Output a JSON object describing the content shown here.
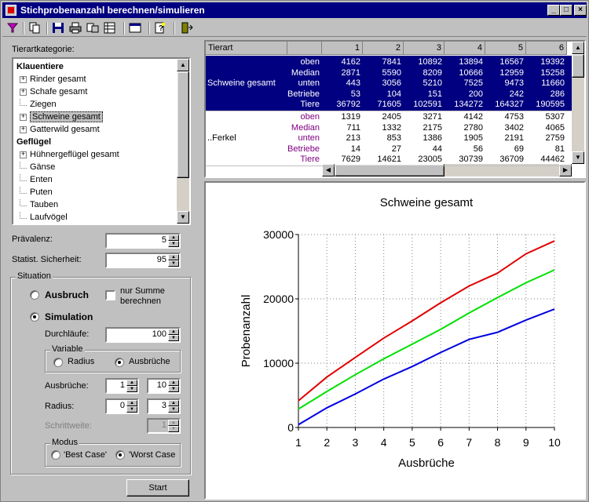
{
  "window": {
    "title": "Stichprobenanzahl berechnen/simulieren",
    "controls": [
      "_",
      "□",
      "×"
    ]
  },
  "toolbar": {
    "icons": [
      "filter-icon",
      "copy-icon",
      "save-icon",
      "print-icon",
      "export-icon",
      "table-icon",
      "window-icon",
      "help-icon",
      "exit-icon"
    ]
  },
  "left": {
    "tree_label": "Tierartkategorie:",
    "tree": [
      {
        "label": "Klauentiere",
        "bold": true,
        "indent": 0,
        "expander": "none"
      },
      {
        "label": "Rinder gesamt",
        "indent": 1,
        "expander": "+"
      },
      {
        "label": "Schafe gesamt",
        "indent": 1,
        "expander": "+"
      },
      {
        "label": "Ziegen",
        "indent": 1,
        "expander": "line"
      },
      {
        "label": "Schweine gesamt",
        "indent": 1,
        "expander": "+",
        "selected": true
      },
      {
        "label": "Gatterwild gesamt",
        "indent": 1,
        "expander": "+"
      },
      {
        "label": "Geflügel",
        "bold": true,
        "indent": 0,
        "expander": "none"
      },
      {
        "label": "Hühnergeflügel gesamt",
        "indent": 1,
        "expander": "+"
      },
      {
        "label": "Gänse",
        "indent": 1,
        "expander": "line"
      },
      {
        "label": "Enten",
        "indent": 1,
        "expander": "line"
      },
      {
        "label": "Puten",
        "indent": 1,
        "expander": "line"
      },
      {
        "label": "Tauben",
        "indent": 1,
        "expander": "line"
      },
      {
        "label": "Laufvögel",
        "indent": 1,
        "expander": "line"
      }
    ],
    "praevalenz_label": "Prävalenz:",
    "praevalenz_value": "5",
    "sicherheit_label": "Statist. Sicherheit:",
    "sicherheit_value": "95",
    "situation": {
      "title": "Situation",
      "ausbruch_label": "Ausbruch",
      "ausbruch_selected": false,
      "nur_summe_label_1": "nur Summe",
      "nur_summe_label_2": "berechnen",
      "nur_summe_checked": false,
      "simulation_label": "Simulation",
      "simulation_selected": true,
      "durchlaeufe_label": "Durchläufe:",
      "durchlaeufe_value": "100",
      "variable_title": "Variable",
      "radius_label": "Radius",
      "radius_selected": false,
      "ausbrueche_option_label": "Ausbrüche",
      "ausbrueche_option_selected": true,
      "ausbrueche_label": "Ausbrüche:",
      "ausbrueche_from": "1",
      "ausbrueche_to": "10",
      "radius_field_label": "Radius:",
      "radius_from": "0",
      "radius_to": "3",
      "schrittweite_label": "Schrittweite:",
      "schrittweite_value": "1",
      "modus_title": "Modus",
      "best_case_label": "'Best Case'",
      "best_case_selected": false,
      "worst_case_label": "'Worst Case",
      "worst_case_selected": true
    },
    "start_label": "Start"
  },
  "grid": {
    "corner": "Tierart",
    "columns": [
      "1",
      "2",
      "3",
      "4",
      "5",
      "6"
    ],
    "groups": [
      {
        "name": "Schweine gesamt",
        "selected": true,
        "rows": [
          {
            "label": "oben",
            "values": [
              "4162",
              "7841",
              "10892",
              "13894",
              "16567",
              "19392"
            ]
          },
          {
            "label": "Median",
            "values": [
              "2871",
              "5590",
              "8209",
              "10666",
              "12959",
              "15258"
            ]
          },
          {
            "label": "unten",
            "values": [
              "443",
              "3056",
              "5210",
              "7525",
              "9473",
              "11660"
            ]
          },
          {
            "label": "Betriebe",
            "values": [
              "53",
              "104",
              "151",
              "200",
              "242",
              "286"
            ]
          },
          {
            "label": "Tiere",
            "values": [
              "36792",
              "71605",
              "102591",
              "134272",
              "164327",
              "190595"
            ]
          }
        ]
      },
      {
        "name": "..Ferkel",
        "selected": false,
        "rows": [
          {
            "label": "oben",
            "values": [
              "1319",
              "2405",
              "3271",
              "4142",
              "4753",
              "5307"
            ]
          },
          {
            "label": "Median",
            "values": [
              "711",
              "1332",
              "2175",
              "2780",
              "3402",
              "4065"
            ]
          },
          {
            "label": "unten",
            "values": [
              "213",
              "853",
              "1386",
              "1905",
              "2191",
              "2759"
            ]
          },
          {
            "label": "Betriebe",
            "values": [
              "14",
              "27",
              "44",
              "56",
              "69",
              "81"
            ]
          },
          {
            "label": "Tiere",
            "values": [
              "7629",
              "14621",
              "23005",
              "30739",
              "36709",
              "44462"
            ]
          }
        ]
      }
    ]
  },
  "chart_data": {
    "type": "line",
    "title": "Schweine gesamt",
    "xlabel": "Ausbrüche",
    "ylabel": "Probenanzahl",
    "x": [
      1,
      2,
      3,
      4,
      5,
      6,
      7,
      8,
      9,
      10
    ],
    "xlim": [
      1,
      10
    ],
    "ylim": [
      0,
      30000
    ],
    "yticks": [
      0,
      10000,
      20000,
      30000
    ],
    "grid": true,
    "series": [
      {
        "color": "#e00000",
        "values": [
          4162,
          7841,
          10892,
          13894,
          16567,
          19392,
          22000,
          24000,
          27000,
          29000
        ]
      },
      {
        "color": "#00e000",
        "values": [
          2871,
          5590,
          8209,
          10666,
          12959,
          15258,
          17800,
          20200,
          22500,
          24500
        ]
      },
      {
        "color": "#0000e0",
        "values": [
          443,
          3056,
          5210,
          7525,
          9473,
          11660,
          13700,
          14800,
          16700,
          18400
        ]
      }
    ]
  }
}
